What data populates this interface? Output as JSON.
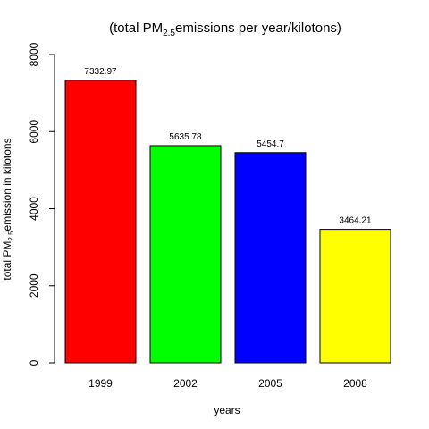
{
  "chart_data": {
    "type": "bar",
    "title": {
      "pre": "(total PM",
      "sub": "2.5",
      "post": "emissions per year/kilotons)"
    },
    "xlabel": "years",
    "ylabel": {
      "pre": "total PM",
      "sub": "2.5",
      "post": "emission in kilotons"
    },
    "categories": [
      "1999",
      "2002",
      "2005",
      "2008"
    ],
    "values": [
      7332.97,
      5635.78,
      5454.7,
      3464.21
    ],
    "data_labels": [
      "7332.97",
      "5635.78",
      "5454.7",
      "3464.21"
    ],
    "colors": [
      "#ff0000",
      "#00ff00",
      "#0000ff",
      "#ffff00"
    ],
    "ylim": [
      0,
      8000
    ],
    "yticks": [
      0,
      2000,
      4000,
      6000,
      8000
    ],
    "ytick_labels": [
      "0",
      "2000",
      "4000",
      "6000",
      "8000"
    ],
    "grid": false,
    "legend": "none"
  }
}
